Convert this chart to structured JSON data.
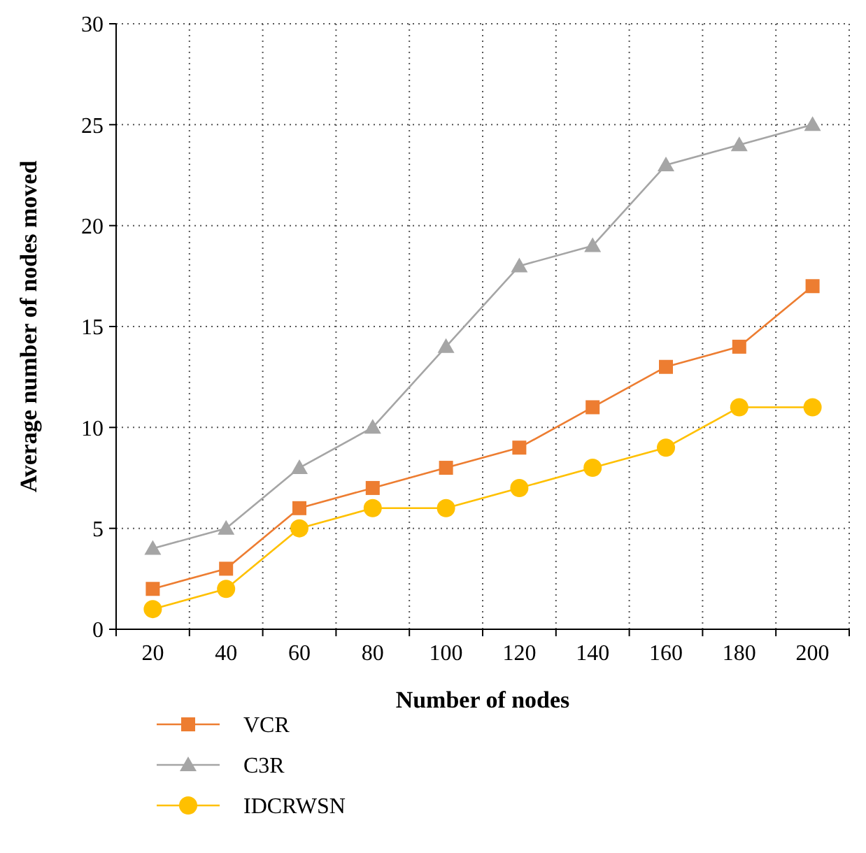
{
  "chart_data": {
    "type": "line",
    "xlabel": "Number of nodes",
    "ylabel": "Average number of nodes moved",
    "categories": [
      "20",
      "40",
      "60",
      "80",
      "100",
      "120",
      "140",
      "160",
      "180",
      "200"
    ],
    "ylim": [
      0,
      30
    ],
    "yticks": [
      0,
      5,
      10,
      15,
      20,
      25,
      30
    ],
    "grid": true,
    "legend": "bottom left",
    "series": [
      {
        "name": "VCR",
        "color": "#ed7d31",
        "marker": "square",
        "values": [
          2,
          3,
          6,
          7,
          8,
          9,
          11,
          13,
          14,
          17
        ]
      },
      {
        "name": "C3R",
        "color": "#a5a5a5",
        "marker": "triangle",
        "values": [
          4,
          5,
          8,
          10,
          14,
          18,
          19,
          23,
          24,
          25
        ]
      },
      {
        "name": "IDCRWSN",
        "color": "#ffc000",
        "marker": "circle",
        "values": [
          1,
          2,
          5,
          6,
          6,
          7,
          8,
          9,
          11,
          11
        ]
      }
    ]
  }
}
